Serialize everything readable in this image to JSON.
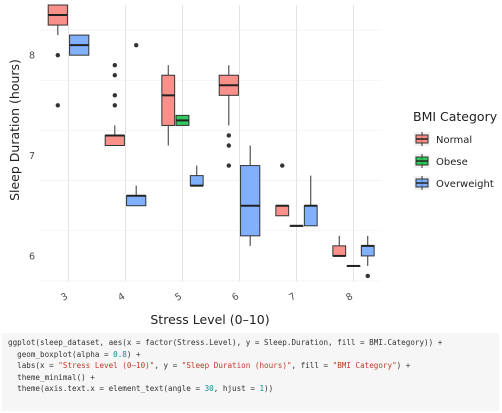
{
  "chart_data": {
    "type": "boxplot",
    "xlabel": "Stress Level (0–10)",
    "ylabel": "Sleep Duration (hours)",
    "categories": [
      "3",
      "4",
      "5",
      "6",
      "7",
      "8"
    ],
    "yticks": [
      6,
      7,
      8
    ],
    "ylim": [
      5.75,
      8.5
    ],
    "grid": true,
    "theme": "minimal",
    "x_tick_angle": 30,
    "legend": {
      "title": "BMI Category",
      "position": "right",
      "entries": [
        "Normal",
        "Obese",
        "Overweight"
      ]
    },
    "series": [
      {
        "name": "Normal",
        "color": "#F8766D",
        "boxes": [
          {
            "category": "3",
            "min": 8.2,
            "q1": 8.3,
            "median": 8.4,
            "q3": 8.5,
            "max": 8.5,
            "outliers": [
              8.0,
              7.5
            ]
          },
          {
            "category": "4",
            "min": 7.1,
            "q1": 7.1,
            "median": 7.2,
            "q3": 7.2,
            "max": 7.3,
            "outliers": [
              7.9,
              7.8,
              7.6,
              7.5
            ]
          },
          {
            "category": "5",
            "min": 7.1,
            "q1": 7.3,
            "median": 7.6,
            "q3": 7.8,
            "max": 7.9,
            "outliers": []
          },
          {
            "category": "6",
            "min": 7.3,
            "q1": 7.6,
            "median": 7.7,
            "q3": 7.8,
            "max": 7.9,
            "outliers": [
              7.2,
              7.1,
              6.9
            ]
          },
          {
            "category": "7",
            "min": 6.4,
            "q1": 6.4,
            "median": 6.5,
            "q3": 6.5,
            "max": 6.5,
            "outliers": [
              6.9
            ]
          },
          {
            "category": "8",
            "min": 6.0,
            "q1": 6.0,
            "median": 6.0,
            "q3": 6.1,
            "max": 6.2,
            "outliers": []
          }
        ]
      },
      {
        "name": "Obese",
        "color": "#00BA38",
        "boxes": [
          {
            "category": "5",
            "min": 7.3,
            "q1": 7.3,
            "median": 7.35,
            "q3": 7.4,
            "max": 7.4,
            "outliers": []
          },
          {
            "category": "7",
            "min": 6.3,
            "q1": 6.3,
            "median": 6.3,
            "q3": 6.3,
            "max": 6.3,
            "outliers": []
          },
          {
            "category": "8",
            "min": 5.9,
            "q1": 5.9,
            "median": 5.9,
            "q3": 5.9,
            "max": 5.9,
            "outliers": []
          }
        ]
      },
      {
        "name": "Overweight",
        "color": "#619CFF",
        "boxes": [
          {
            "category": "3",
            "min": 8.0,
            "q1": 8.0,
            "median": 8.1,
            "q3": 8.2,
            "max": 8.2,
            "outliers": []
          },
          {
            "category": "4",
            "min": 6.5,
            "q1": 6.5,
            "median": 6.6,
            "q3": 6.6,
            "max": 6.7,
            "outliers": [
              8.1
            ]
          },
          {
            "category": "5",
            "min": 6.7,
            "q1": 6.7,
            "median": 6.7,
            "q3": 6.8,
            "max": 6.9,
            "outliers": []
          },
          {
            "category": "6",
            "min": 6.1,
            "q1": 6.2,
            "median": 6.5,
            "q3": 6.9,
            "max": 7.1,
            "outliers": []
          },
          {
            "category": "7",
            "min": 6.3,
            "q1": 6.3,
            "median": 6.5,
            "q3": 6.5,
            "max": 6.8,
            "outliers": []
          },
          {
            "category": "8",
            "min": 5.9,
            "q1": 6.0,
            "median": 6.1,
            "q3": 6.1,
            "max": 6.2,
            "outliers": [
              5.8
            ]
          }
        ]
      }
    ]
  },
  "code": {
    "lines": [
      [
        {
          "t": "ggplot(sleep_dataset, aes(x = factor(Stress.Level), y = Sleep.Duration, fill = BMI.Category)) +"
        }
      ],
      [
        {
          "t": "  geom_boxplot(alpha = "
        },
        {
          "t": "0.8",
          "k": "num"
        },
        {
          "t": ") +"
        }
      ],
      [
        {
          "t": "  labs(x = "
        },
        {
          "t": "\"Stress Level (0–10)\"",
          "k": "str"
        },
        {
          "t": ", y = "
        },
        {
          "t": "\"Sleep Duration (hours)\"",
          "k": "str"
        },
        {
          "t": ", fill = "
        },
        {
          "t": "\"BMI Category\"",
          "k": "str"
        },
        {
          "t": ") +"
        }
      ],
      [
        {
          "t": "  theme_minimal() +"
        }
      ],
      [
        {
          "t": "  theme(axis.text.x = element_text(angle = "
        },
        {
          "t": "30",
          "k": "num"
        },
        {
          "t": ", hjust = "
        },
        {
          "t": "1",
          "k": "num"
        },
        {
          "t": "))"
        }
      ]
    ]
  }
}
